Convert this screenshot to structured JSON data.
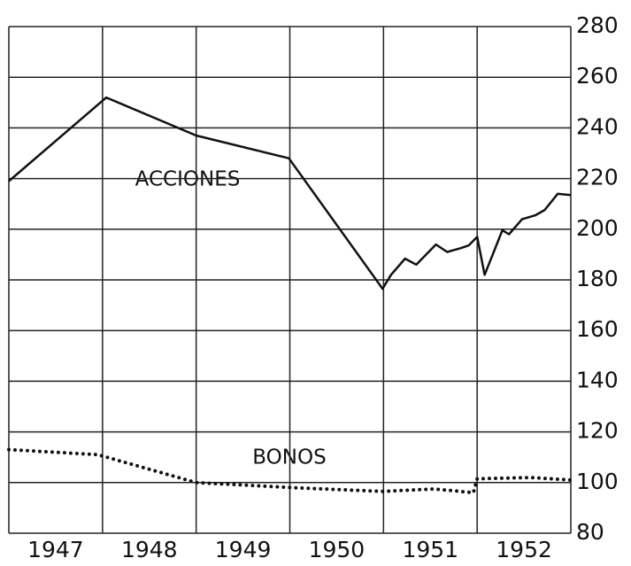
{
  "chart_data": {
    "type": "line",
    "categories": [
      "1947",
      "1948",
      "1949",
      "1950",
      "1951",
      "1952"
    ],
    "xlim": [
      1947,
      1953
    ],
    "ylim": [
      80,
      280
    ],
    "yticks": [
      80,
      100,
      120,
      140,
      160,
      180,
      200,
      220,
      240,
      260,
      280
    ],
    "grid": true,
    "annotations": [
      "ACCIONES",
      "BONOS"
    ],
    "series": [
      {
        "name": "ACCIONES",
        "color": "#111111",
        "style": "solid",
        "x": [
          1947,
          1948.04,
          1949.0,
          1949.99,
          1950.99,
          1951.08,
          1951.23,
          1951.35,
          1951.56,
          1951.68,
          1951.82,
          1951.91,
          1952.0,
          1952.08,
          1952.27,
          1952.34,
          1952.48,
          1952.62,
          1952.72,
          1952.86,
          1953
        ],
        "values": [
          219,
          252,
          237,
          228,
          176.5,
          182,
          188.4,
          186,
          194,
          191,
          192.5,
          193.6,
          197,
          182,
          199.6,
          198,
          204,
          205.5,
          207.6,
          214,
          213.5
        ]
      },
      {
        "name": "BONOS",
        "color": "#111111",
        "style": "dotted",
        "x": [
          1947,
          1947.95,
          1949.0,
          1950.02,
          1950.99,
          1951.54,
          1951.96,
          1952.0,
          1952.58,
          1953
        ],
        "values": [
          113,
          111,
          100,
          98,
          96.5,
          97.5,
          96,
          101.5,
          102,
          101
        ]
      }
    ]
  }
}
